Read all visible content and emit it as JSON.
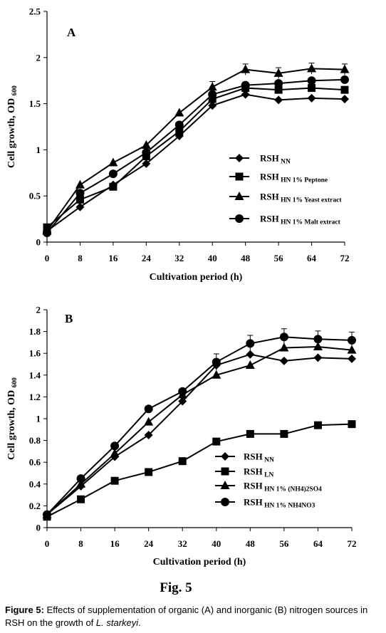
{
  "chart_data": [
    {
      "type": "line",
      "panel_label": "A",
      "xlabel": "Cultivation period (h)",
      "ylabel": "Cell growth, OD 600",
      "x": [
        0,
        8,
        16,
        24,
        32,
        40,
        48,
        56,
        64,
        72
      ],
      "ylim": [
        0,
        2.5
      ],
      "yticks": [
        "0",
        "0.5",
        "1",
        "1.5",
        "2",
        "2.5"
      ],
      "grid": false,
      "legend_position": "center-right",
      "series": [
        {
          "name_main": "RSH",
          "name_sub": "NN",
          "marker": "diamond",
          "values": [
            0.12,
            0.38,
            0.62,
            0.85,
            1.15,
            1.48,
            1.6,
            1.54,
            1.56,
            1.55
          ]
        },
        {
          "name_main": "RSH",
          "name_sub": "HN 1% Peptone",
          "marker": "square",
          "values": [
            0.16,
            0.46,
            0.6,
            0.93,
            1.2,
            1.55,
            1.67,
            1.65,
            1.67,
            1.65
          ]
        },
        {
          "name_main": "RSH",
          "name_sub": "HN 1% Yeast extract",
          "marker": "triangle",
          "values": [
            0.12,
            0.62,
            0.86,
            1.05,
            1.4,
            1.68,
            1.87,
            1.83,
            1.88,
            1.87
          ]
        },
        {
          "name_main": "RSH",
          "name_sub": "HN 1% Malt extract",
          "marker": "circle",
          "values": [
            0.1,
            0.53,
            0.74,
            0.97,
            1.27,
            1.6,
            1.7,
            1.72,
            1.75,
            1.76
          ]
        }
      ]
    },
    {
      "type": "line",
      "panel_label": "B",
      "xlabel": "Cultivation period (h)",
      "ylabel": "Cell growth, OD 600",
      "x": [
        0,
        8,
        16,
        24,
        32,
        40,
        48,
        56,
        64,
        72
      ],
      "ylim": [
        0,
        2
      ],
      "yticks": [
        "0",
        "0.2",
        "0.4",
        "0.6",
        "0.8",
        "1",
        "1.2",
        "1.4",
        "1.6",
        "1.8",
        "2"
      ],
      "grid": false,
      "legend_position": "bottom-right",
      "series": [
        {
          "name_main": "RSH",
          "name_sub": "NN",
          "marker": "diamond",
          "values": [
            0.12,
            0.38,
            0.65,
            0.85,
            1.16,
            1.49,
            1.59,
            1.53,
            1.56,
            1.55
          ]
        },
        {
          "name_main": "RSH",
          "name_sub": "LN",
          "marker": "square",
          "values": [
            0.1,
            0.26,
            0.43,
            0.51,
            0.61,
            0.79,
            0.86,
            0.86,
            0.94,
            0.95
          ]
        },
        {
          "name_main": "RSH",
          "name_sub": "HN 1% (NH4)2SO4",
          "marker": "triangle",
          "values": [
            0.12,
            0.4,
            0.68,
            0.97,
            1.22,
            1.4,
            1.49,
            1.65,
            1.66,
            1.63
          ]
        },
        {
          "name_main": "RSH",
          "name_sub": "HN 1% NH4NO3",
          "marker": "circle",
          "values": [
            0.12,
            0.45,
            0.75,
            1.09,
            1.25,
            1.52,
            1.69,
            1.75,
            1.73,
            1.72
          ]
        }
      ]
    }
  ],
  "figure_label": "Fig. 5",
  "caption": {
    "bold": "Figure 5:",
    "text": " Effects of supplementation of organic (A) and inorganic (B) nitrogen sources in RSH on the growth of ",
    "italic": "L. starkeyi",
    "end": "."
  }
}
